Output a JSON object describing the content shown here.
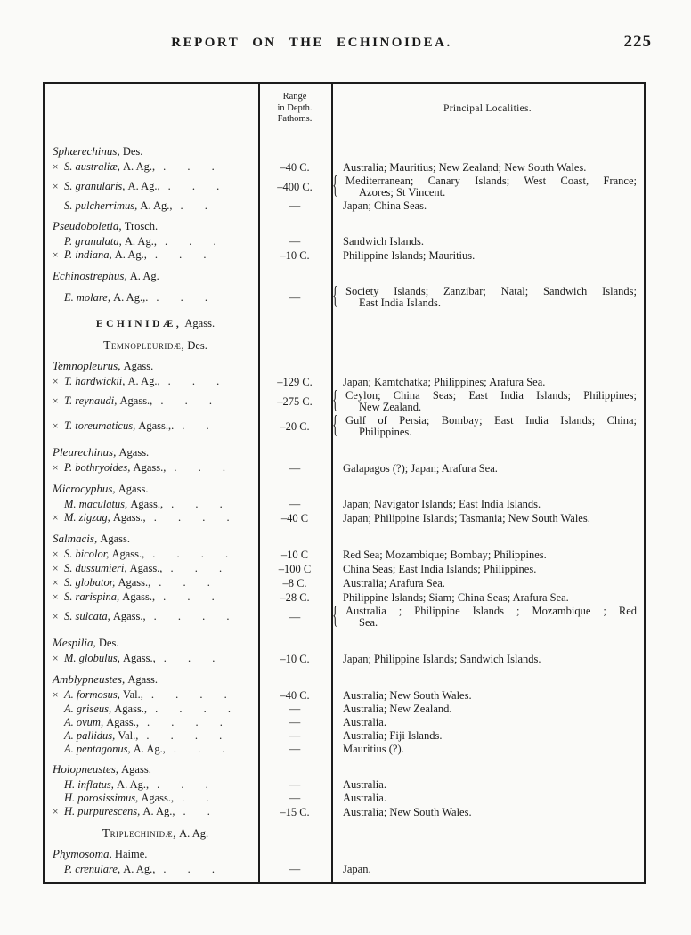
{
  "page": {
    "title": "REPORT ON THE ECHINOIDEA.",
    "number": "225"
  },
  "table": {
    "col2_header": [
      "Range",
      "in Depth.",
      "Fathoms."
    ],
    "col3_header": "Principal Localities.",
    "blocks": [
      {
        "kind": "genus",
        "name": "Sphærechinus,",
        "auth": "Des."
      },
      {
        "kind": "species",
        "mark": "×",
        "name": "S. australiæ,",
        "auth": "A. Ag.,",
        "dots": ". . .",
        "depth": "–40 C.",
        "localities": [
          "Australia; Mauritius; New Zealand; New South Wales."
        ]
      },
      {
        "kind": "species",
        "mark": "×",
        "name": "S. granularis,",
        "auth": "A. Ag.,",
        "dots": ". . .",
        "depth": "–400 C.",
        "brace": true,
        "localities": [
          "Mediterranean; Canary Islands; West Coast, France;",
          "Azores; St Vincent."
        ]
      },
      {
        "kind": "species",
        "mark": "",
        "name": "S. pulcherrimus,",
        "auth": "A. Ag.,",
        "dots": ". .",
        "depth": "—",
        "localities": [
          "Japan; China Seas."
        ]
      },
      {
        "kind": "genus",
        "name": "Pseudoboletia,",
        "auth": "Trosch."
      },
      {
        "kind": "species",
        "mark": "",
        "name": "P. granulata,",
        "auth": "A. Ag.,",
        "dots": ". . .",
        "depth": "—",
        "localities": [
          "Sandwich Islands."
        ]
      },
      {
        "kind": "species",
        "mark": "×",
        "name": "P. indiana,",
        "auth": "A. Ag.,",
        "dots": ". . .",
        "depth": "–10 C.",
        "localities": [
          "Philippine Islands; Mauritius."
        ]
      },
      {
        "kind": "genus",
        "name": "Echinostrephus,",
        "auth": "A. Ag."
      },
      {
        "kind": "species",
        "mark": "",
        "name": "E. molare,",
        "auth": "A. Ag.,.",
        "dots": ". . .",
        "depth": "—",
        "brace": true,
        "localities": [
          "Society Islands; Zanzibar; Natal; Sandwich Islands;",
          "East India Islands."
        ]
      },
      {
        "kind": "family",
        "style": "spaced",
        "name": "ECHINIDÆ,",
        "auth": "Agass."
      },
      {
        "kind": "family",
        "style": "caps",
        "name": "Temnopleuridæ,",
        "auth": "Des."
      },
      {
        "kind": "genus",
        "name": "Temnopleurus,",
        "auth": "Agass."
      },
      {
        "kind": "species",
        "mark": "×",
        "name": "T. hardwickii,",
        "auth": "A. Ag.,",
        "dots": ". . .",
        "depth": "–129 C.",
        "localities": [
          "Japan; Kamtchatka; Philippines; Arafura Sea."
        ]
      },
      {
        "kind": "species",
        "mark": "×",
        "name": "T. reynaudi,",
        "auth": "Agass.,",
        "dots": ". . .",
        "depth": "–275 C.",
        "brace": true,
        "localities": [
          "Ceylon; China Seas; East India Islands; Philippines;",
          "New Zealand."
        ]
      },
      {
        "kind": "species",
        "mark": "×",
        "name": "T. toreumaticus,",
        "auth": "Agass.,.",
        "dots": ". .",
        "depth": "–20 C.",
        "brace": true,
        "localities": [
          "Gulf of Persia; Bombay; East India Islands; China;",
          "Philippines."
        ]
      },
      {
        "kind": "genus",
        "name": "Pleurechinus,",
        "auth": "Agass."
      },
      {
        "kind": "species",
        "mark": "×",
        "name": "P. bothryoides,",
        "auth": "Agass.,",
        "dots": ". . .",
        "depth": "—",
        "localities": [
          "Galapagos (?); Japan; Arafura Sea."
        ]
      },
      {
        "kind": "genus",
        "name": "Microcyphus,",
        "auth": "Agass."
      },
      {
        "kind": "species",
        "mark": "",
        "name": "M. maculatus,",
        "auth": "Agass.,",
        "dots": ". . .",
        "depth": "—",
        "localities": [
          "Japan; Navigator Islands; East India Islands."
        ]
      },
      {
        "kind": "species",
        "mark": "×",
        "name": "M. zigzag,",
        "auth": "Agass.,",
        "dots": ". . . .",
        "depth": "–40 C",
        "localities": [
          "Japan; Philippine Islands; Tasmania; New South Wales."
        ]
      },
      {
        "kind": "genus",
        "name": "Salmacis,",
        "auth": "Agass."
      },
      {
        "kind": "species",
        "mark": "×",
        "name": "S. bicolor,",
        "auth": "Agass.,",
        "dots": ". . . .",
        "depth": "–10 C",
        "localities": [
          "Red Sea; Mozambique; Bombay; Philippines."
        ]
      },
      {
        "kind": "species",
        "mark": "×",
        "name": "S. dussumieri,",
        "auth": "Agass.,",
        "dots": ". . .",
        "depth": "–100 C",
        "localities": [
          "China Seas; East India Islands; Philippines."
        ]
      },
      {
        "kind": "species",
        "mark": "×",
        "name": "S. globator,",
        "auth": "Agass.,",
        "dots": ". . .",
        "depth": "–8 C.",
        "localities": [
          "Australia; Arafura Sea."
        ]
      },
      {
        "kind": "species",
        "mark": "×",
        "name": "S. rarispina,",
        "auth": "Agass.,",
        "dots": ". . .",
        "depth": "–28 C.",
        "localities": [
          "Philippine Islands; Siam; China Seas; Arafura Sea."
        ]
      },
      {
        "kind": "species",
        "mark": "×",
        "name": "S. sulcata,",
        "auth": "Agass.,",
        "dots": ". . . .",
        "depth": "—",
        "brace": true,
        "localities": [
          "Australia ; Philippine Islands ; Mozambique ; Red",
          "Sea."
        ]
      },
      {
        "kind": "genus",
        "name": "Mespilia,",
        "auth": "Des."
      },
      {
        "kind": "species",
        "mark": "×",
        "name": "M. globulus,",
        "auth": "Agass.,",
        "dots": ". . .",
        "depth": "–10 C.",
        "localities": [
          "Japan; Philippine Islands; Sandwich Islands."
        ]
      },
      {
        "kind": "genus",
        "name": "Amblypneustes,",
        "auth": "Agass."
      },
      {
        "kind": "species",
        "mark": "×",
        "name": "A. formosus,",
        "auth": "Val.,",
        "dots": ". . . .",
        "depth": "–40 C.",
        "localities": [
          "Australia; New South Wales."
        ]
      },
      {
        "kind": "species",
        "mark": "",
        "name": "A. griseus,",
        "auth": "Agass.,",
        "dots": ". . . .",
        "depth": "—",
        "localities": [
          "Australia; New Zealand."
        ]
      },
      {
        "kind": "species",
        "mark": "",
        "name": "A. ovum,",
        "auth": "Agass.,",
        "dots": ". . . .",
        "depth": "—",
        "localities": [
          "Australia."
        ]
      },
      {
        "kind": "species",
        "mark": "",
        "name": "A. pallidus,",
        "auth": "Val.,",
        "dots": ". . . .",
        "depth": "—",
        "localities": [
          "Australia; Fiji Islands."
        ]
      },
      {
        "kind": "species",
        "mark": "",
        "name": "A. pentagonus,",
        "auth": "A. Ag.,",
        "dots": ". . .",
        "depth": "—",
        "localities": [
          "Mauritius (?)."
        ]
      },
      {
        "kind": "genus",
        "name": "Holopneustes,",
        "auth": "Agass."
      },
      {
        "kind": "species",
        "mark": "",
        "name": "H. inflatus,",
        "auth": "A. Ag.,",
        "dots": ". . .",
        "depth": "—",
        "localities": [
          "Australia."
        ]
      },
      {
        "kind": "species",
        "mark": "",
        "name": "H. porosissimus,",
        "auth": "Agass.,",
        "dots": ". .",
        "depth": "—",
        "localities": [
          "Australia."
        ]
      },
      {
        "kind": "species",
        "mark": "×",
        "name": "H. purpurescens,",
        "auth": "A. Ag.,",
        "dots": ". .",
        "depth": "–15 C.",
        "localities": [
          "Australia; New South Wales."
        ]
      },
      {
        "kind": "family",
        "style": "caps",
        "name": "Triplechinidæ,",
        "auth": "A. Ag."
      },
      {
        "kind": "genus",
        "name": "Phymosoma,",
        "auth": "Haime."
      },
      {
        "kind": "species",
        "mark": "",
        "name": "P. crenulare,",
        "auth": "A. Ag.,",
        "dots": ". . .",
        "depth": "—",
        "localities": [
          "Japan."
        ]
      }
    ]
  }
}
